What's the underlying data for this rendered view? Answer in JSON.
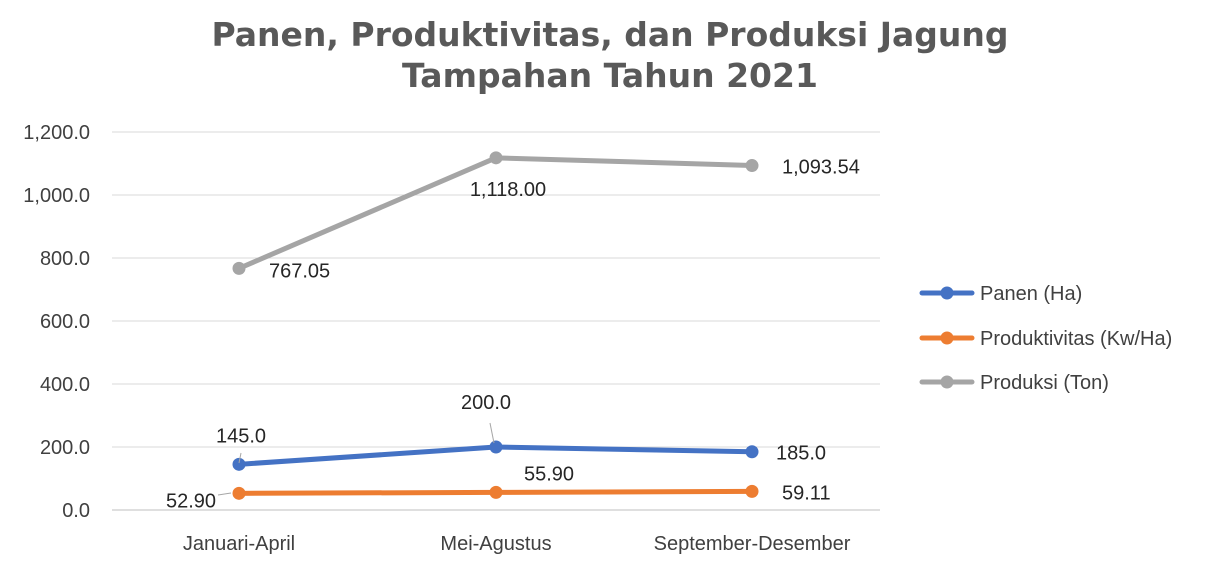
{
  "chart_data": {
    "type": "line",
    "title_line1": "Panen, Produktivitas, dan Produksi Jagung",
    "title_line2": "Tampahan Tahun 2021",
    "categories": [
      "Januari-April",
      "Mei-Agustus",
      "September-Desember"
    ],
    "ylim": [
      0,
      1200
    ],
    "yticks": [
      0,
      200,
      400,
      600,
      800,
      1000,
      1200
    ],
    "ytick_labels": [
      "0.0",
      "200.0",
      "400.0",
      "600.0",
      "800.0",
      "1,000.0",
      "1,200.0"
    ],
    "grid": true,
    "legend_position": "right",
    "series": [
      {
        "name": "Panen (Ha)",
        "values": [
          145.0,
          200.0,
          185.0
        ],
        "labels": [
          "145.0",
          "200.0",
          "185.0"
        ],
        "color": "#4472C4"
      },
      {
        "name": "Produktivitas (Kw/Ha)",
        "values": [
          52.9,
          55.9,
          59.11
        ],
        "labels": [
          "52.90",
          "55.90",
          "59.11"
        ],
        "color": "#ED7D31"
      },
      {
        "name": "Produksi (Ton)",
        "values": [
          767.05,
          1118.0,
          1093.54
        ],
        "labels": [
          "767.05",
          "1,118.00",
          "1,093.54"
        ],
        "color": "#A5A5A5"
      }
    ]
  }
}
